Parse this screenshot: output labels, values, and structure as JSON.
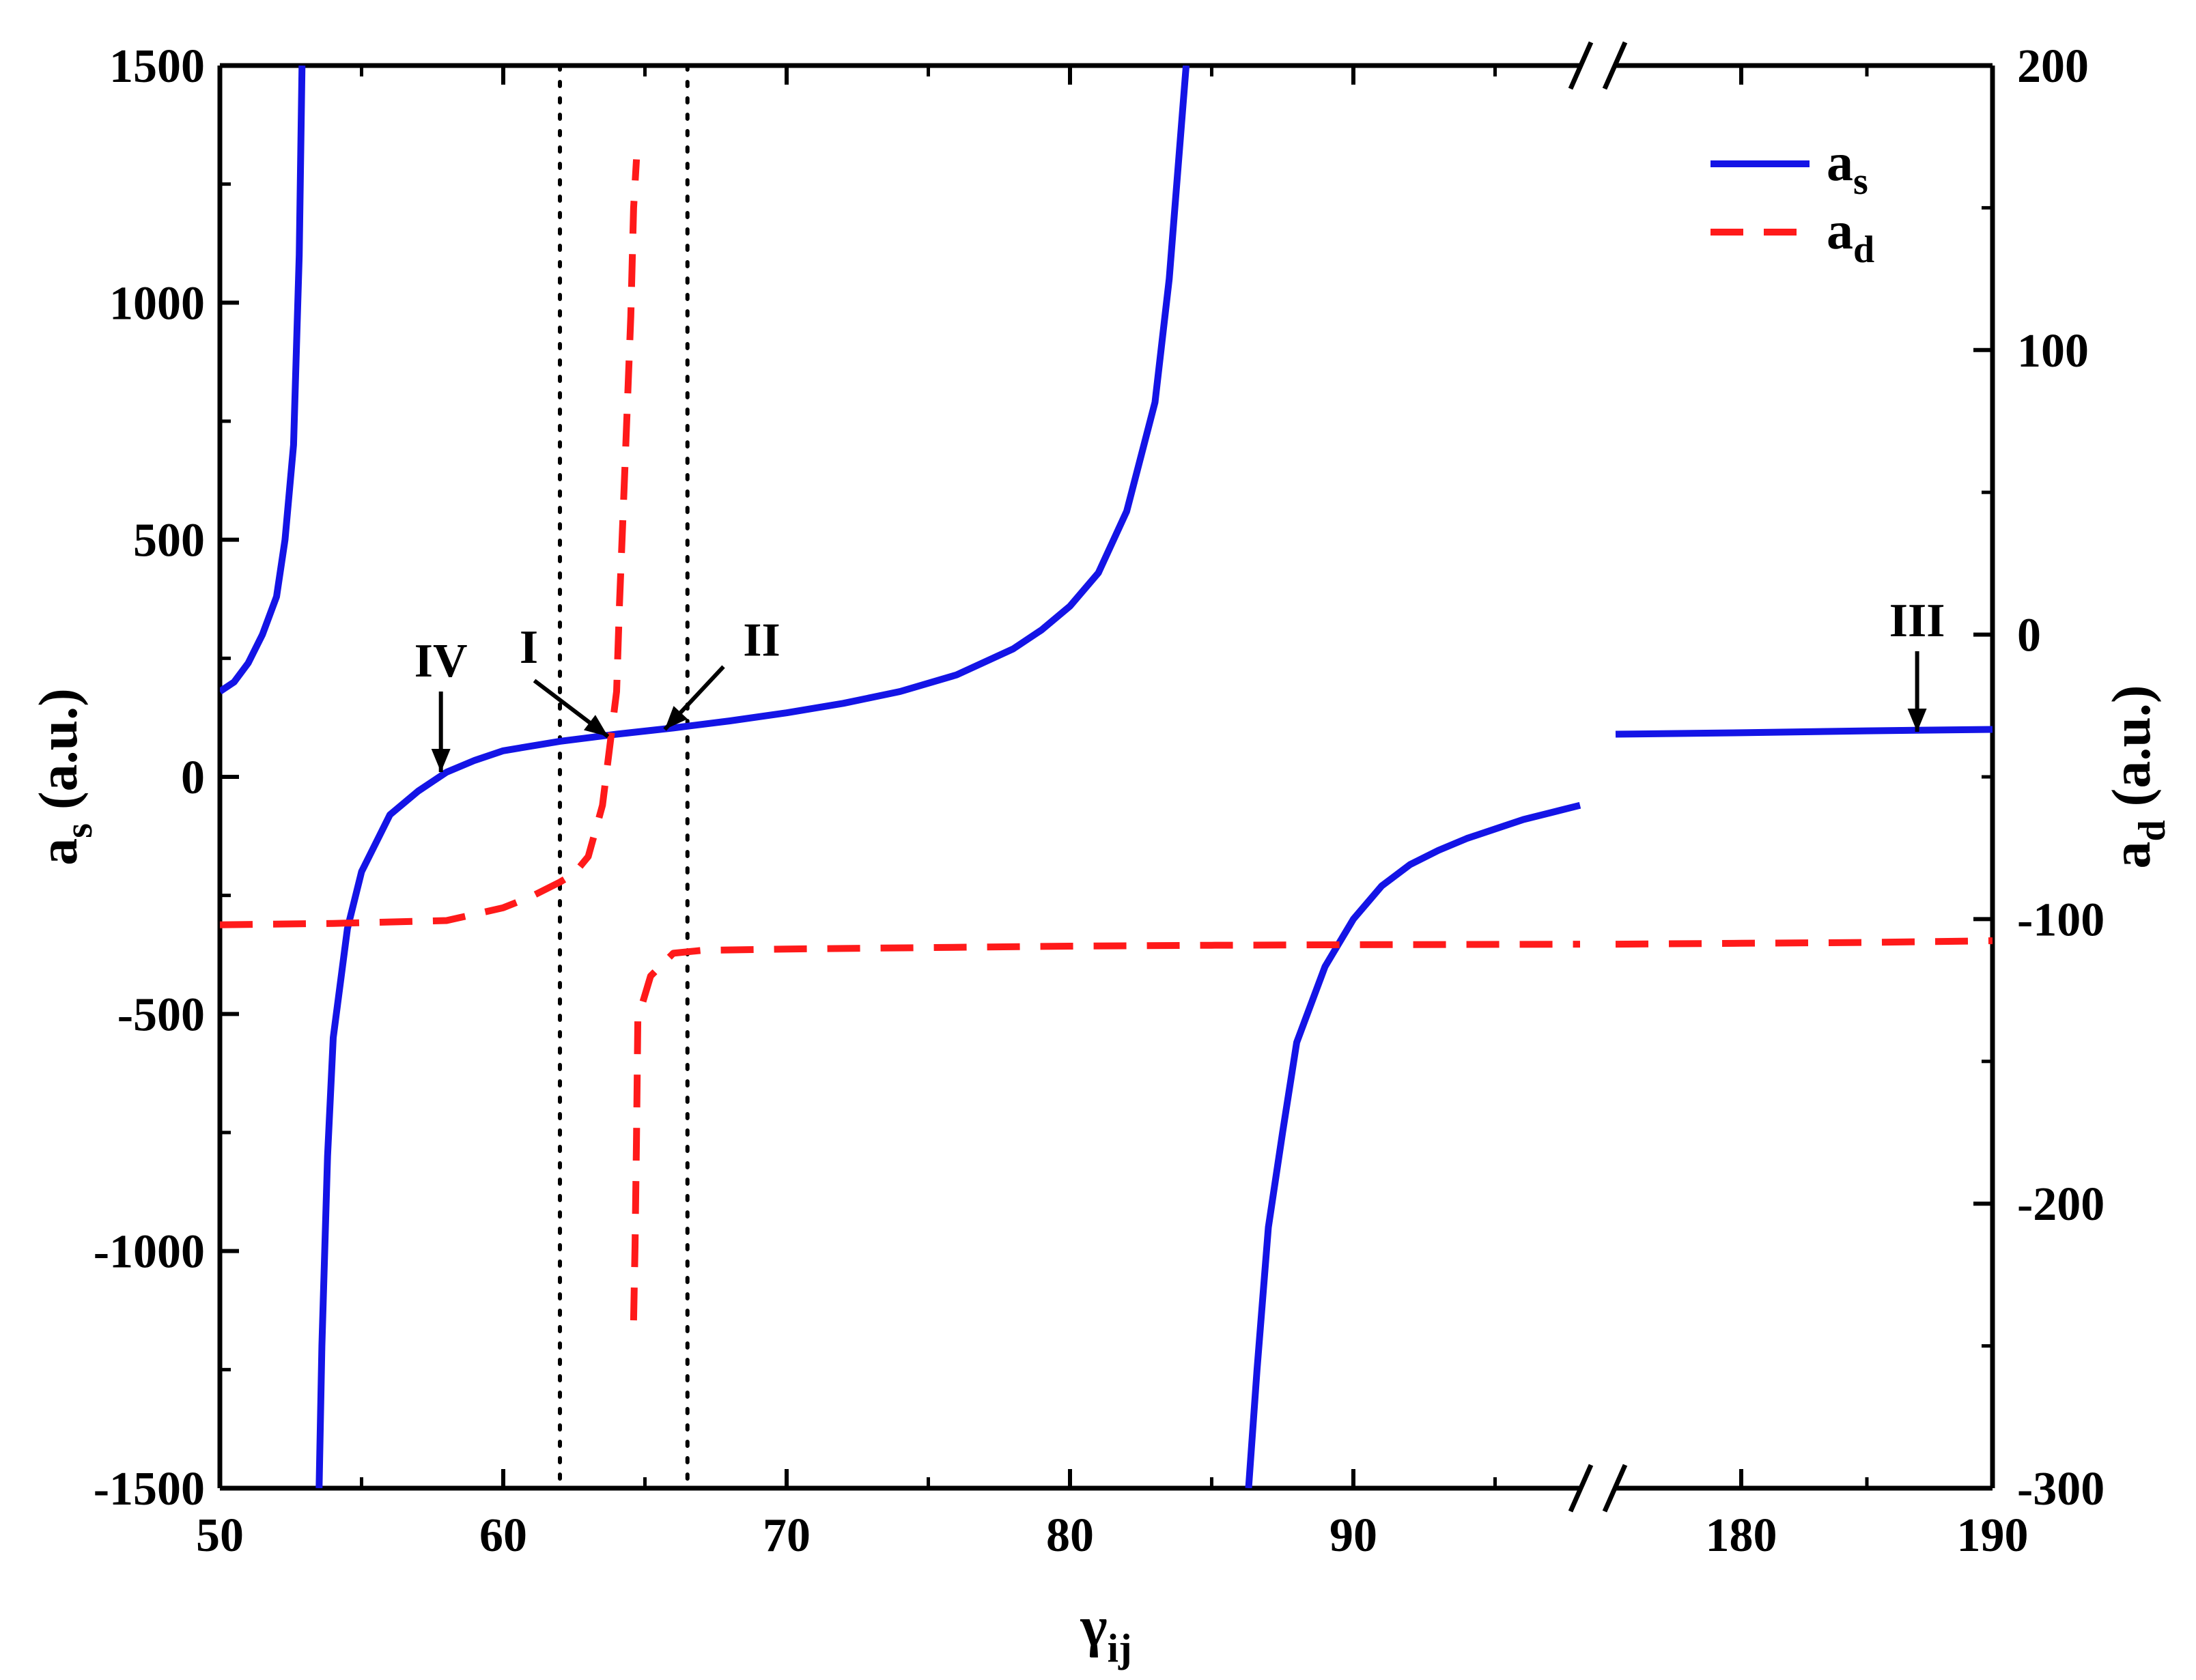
{
  "chart_data": {
    "type": "line",
    "title": "",
    "xlabel": "γ",
    "xlabel_sub": "ij",
    "ylabel_left": "a",
    "ylabel_left_sub": "s",
    "ylabel_left_unit": " (a.u.)",
    "ylabel_right": "a",
    "ylabel_right_sub": "d",
    "ylabel_right_unit": " (a.u.)",
    "x_broken": true,
    "x_segments": [
      {
        "xlim": [
          50,
          98
        ]
      },
      {
        "xlim": [
          175,
          190
        ]
      }
    ],
    "x_ticks_segment1": [
      50,
      60,
      70,
      80,
      90
    ],
    "x_ticks_segment2": [
      180,
      190
    ],
    "x_tick_labels": [
      "50",
      "60",
      "70",
      "80",
      "90",
      "180",
      "190"
    ],
    "ylim_left": [
      -1500,
      1500
    ],
    "y_left_ticks": [
      -1500,
      -1000,
      -500,
      0,
      500,
      1000,
      1500
    ],
    "y_left_tick_labels": [
      "-1500",
      "-1000",
      "-500",
      "0",
      "500",
      "1000",
      "1500"
    ],
    "ylim_right": [
      -300,
      200
    ],
    "y_right_ticks": [
      -300,
      -200,
      -100,
      0,
      100,
      200
    ],
    "y_right_tick_labels": [
      "-300",
      "-200",
      "-100",
      "0",
      "100",
      "200"
    ],
    "grid": false,
    "legend_position": "top-right",
    "legend": [
      {
        "label": "a",
        "sub": "s",
        "color": "#1414e6",
        "style": "solid"
      },
      {
        "label": "a",
        "sub": "d",
        "color": "#ff1a1a",
        "style": "dashed"
      }
    ],
    "vertical_dotted_lines_x": [
      62,
      66.5
    ],
    "series": [
      {
        "name": "as",
        "axis": "left",
        "color": "#1414e6",
        "style": "solid",
        "branches": [
          [
            [
              50,
              180
            ],
            [
              50.5,
              200
            ],
            [
              51,
              240
            ],
            [
              51.5,
              300
            ],
            [
              52,
              380
            ],
            [
              52.3,
              500
            ],
            [
              52.6,
              700
            ],
            [
              52.8,
              1100
            ],
            [
              52.9,
              1500
            ]
          ],
          [
            [
              53.5,
              -1500
            ],
            [
              53.6,
              -1200
            ],
            [
              53.8,
              -800
            ],
            [
              54.0,
              -550
            ],
            [
              54.5,
              -320
            ],
            [
              55,
              -200
            ],
            [
              56,
              -80
            ],
            [
              57,
              -30
            ],
            [
              58,
              10
            ],
            [
              59,
              35
            ],
            [
              60,
              55
            ],
            [
              62,
              75
            ],
            [
              64,
              90
            ],
            [
              66,
              103
            ],
            [
              68,
              118
            ],
            [
              70,
              135
            ],
            [
              72,
              155
            ],
            [
              74,
              180
            ],
            [
              76,
              215
            ],
            [
              78,
              270
            ],
            [
              79,
              310
            ],
            [
              80,
              360
            ],
            [
              81,
              430
            ],
            [
              82,
              560
            ],
            [
              83,
              790
            ],
            [
              83.5,
              1050
            ],
            [
              84.1,
              1500
            ]
          ],
          [
            [
              86.3,
              -1500
            ],
            [
              86.6,
              -1250
            ],
            [
              87,
              -950
            ],
            [
              87.5,
              -750
            ],
            [
              88,
              -560
            ],
            [
              89,
              -400
            ],
            [
              90,
              -300
            ],
            [
              91,
              -230
            ],
            [
              92,
              -185
            ],
            [
              93,
              -155
            ],
            [
              94,
              -130
            ],
            [
              95,
              -110
            ],
            [
              96,
              -90
            ],
            [
              97,
              -75
            ],
            [
              98,
              -60
            ]
          ],
          [
            [
              175,
              90
            ],
            [
              180,
              93
            ],
            [
              185,
              97
            ],
            [
              190,
              100
            ]
          ]
        ]
      },
      {
        "name": "ad",
        "axis": "right",
        "color": "#ff1a1a",
        "style": "dashed",
        "branches": [
          [
            [
              50,
              -102
            ],
            [
              54,
              -101.5
            ],
            [
              58,
              -100.5
            ],
            [
              60,
              -96
            ],
            [
              61,
              -92
            ],
            [
              62,
              -87
            ],
            [
              62.5,
              -84
            ],
            [
              63,
              -78
            ],
            [
              63.5,
              -60
            ],
            [
              64,
              -20
            ],
            [
              64.1,
              10
            ],
            [
              64.3,
              60
            ],
            [
              64.5,
              112
            ],
            [
              64.6,
              150
            ],
            [
              64.7,
              167
            ]
          ],
          [
            [
              64.6,
              -241
            ],
            [
              64.65,
              -215
            ],
            [
              64.7,
              -178
            ],
            [
              64.75,
              -135
            ],
            [
              65.2,
              -120
            ],
            [
              66.0,
              -112
            ],
            [
              67,
              -111
            ],
            [
              70,
              -110.5
            ],
            [
              75,
              -110
            ],
            [
              80,
              -109.5
            ],
            [
              85,
              -109.2
            ],
            [
              90,
              -109
            ],
            [
              98,
              -108.8
            ]
          ],
          [
            [
              175,
              -108.8
            ],
            [
              180,
              -108.5
            ],
            [
              185,
              -108.2
            ],
            [
              190,
              -107.6
            ]
          ]
        ]
      }
    ],
    "annotations": [
      {
        "text": "IV",
        "x": 57.8,
        "y": 10,
        "axis": "left",
        "direction": "down"
      },
      {
        "text": "I",
        "x": 63.7,
        "y": 85,
        "axis": "left",
        "direction": "diagonal-down-right"
      },
      {
        "text": "II",
        "x": 65.7,
        "y": 100,
        "axis": "left",
        "direction": "diagonal-down-left"
      },
      {
        "text": "III",
        "x": 187,
        "y": 95,
        "axis": "left",
        "direction": "down"
      }
    ]
  }
}
